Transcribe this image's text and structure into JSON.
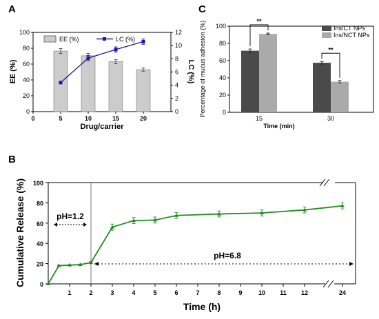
{
  "panels": {
    "a": "A",
    "b": "B",
    "c": "C"
  },
  "chart_data": [
    {
      "type": "bar",
      "panel": "A",
      "categories": [
        "5",
        "10",
        "15",
        "20"
      ],
      "series": [
        {
          "name": "EE (%)",
          "kind": "bar",
          "axis": "left",
          "values": [
            76.5,
            70.5,
            63,
            53
          ],
          "errors": [
            3,
            3,
            2.5,
            2
          ],
          "color": "#cccccc"
        },
        {
          "name": "LC (%)",
          "kind": "line",
          "axis": "right",
          "values": [
            4.4,
            8.1,
            9.4,
            10.6
          ],
          "errors": [
            0.1,
            0.4,
            0.4,
            0.4
          ],
          "color": "#1a1aa6"
        }
      ],
      "xlabel": "Drug/carrier",
      "ylabel": "EE (%)",
      "y2label": "LC (%)",
      "xlim": [
        0,
        25
      ],
      "xticks": [
        "0",
        "5",
        "10",
        "15",
        "20"
      ],
      "ylim": [
        0,
        100
      ],
      "yticks": [
        "0",
        "20",
        "40",
        "60",
        "80",
        "100"
      ],
      "y2lim": [
        0,
        12
      ],
      "y2ticks": [
        "0",
        "2",
        "4",
        "6",
        "8",
        "10",
        "12"
      ],
      "legend": "top",
      "grid": false
    },
    {
      "type": "bar",
      "panel": "C",
      "categories": [
        "15",
        "30"
      ],
      "series": [
        {
          "name": "Ins/CT NPs",
          "values": [
            71.5,
            57.5
          ],
          "errors": [
            2,
            1.5
          ],
          "color": "#4a4a4a"
        },
        {
          "name": "Ins/NCT NPs",
          "values": [
            91,
            35.5
          ],
          "errors": [
            1,
            1.5
          ],
          "color": "#aaaaaa"
        }
      ],
      "significance": [
        "**",
        "**"
      ],
      "xlabel": "Time (min)",
      "ylabel": "Percentage of mucus adhesion (%)",
      "ylim": [
        0,
        100
      ],
      "yticks": [
        "0",
        "20",
        "40",
        "60",
        "80",
        "100"
      ],
      "legend": "top-right",
      "grid": false
    },
    {
      "type": "line",
      "panel": "B",
      "x": [
        0,
        0.5,
        1,
        1.5,
        2,
        3,
        4,
        5,
        6,
        8,
        10,
        12,
        24
      ],
      "series": [
        {
          "name": "",
          "values": [
            0,
            18,
            18.5,
            19,
            21,
            56,
            62.5,
            63,
            67.5,
            69,
            70,
            73,
            77
          ],
          "errors": [
            0,
            0.5,
            0.5,
            0.5,
            1,
            3,
            3,
            3,
            3,
            3,
            3,
            3,
            3
          ],
          "color": "#1f8f1f"
        }
      ],
      "xlabel": "Time (h)",
      "ylabel": "Cumulative Release (%)",
      "ylim": [
        0,
        100
      ],
      "yticks": [
        "0",
        "20",
        "40",
        "60",
        "80",
        "100"
      ],
      "xticks": [
        "1",
        "2",
        "3",
        "4",
        "5",
        "6",
        "7",
        "8",
        "9",
        "10",
        "11",
        "12",
        "24"
      ],
      "axis_break": "between 12 and 24",
      "annotations": [
        "pH=1.2",
        "pH=6.8"
      ],
      "grid": false
    }
  ]
}
